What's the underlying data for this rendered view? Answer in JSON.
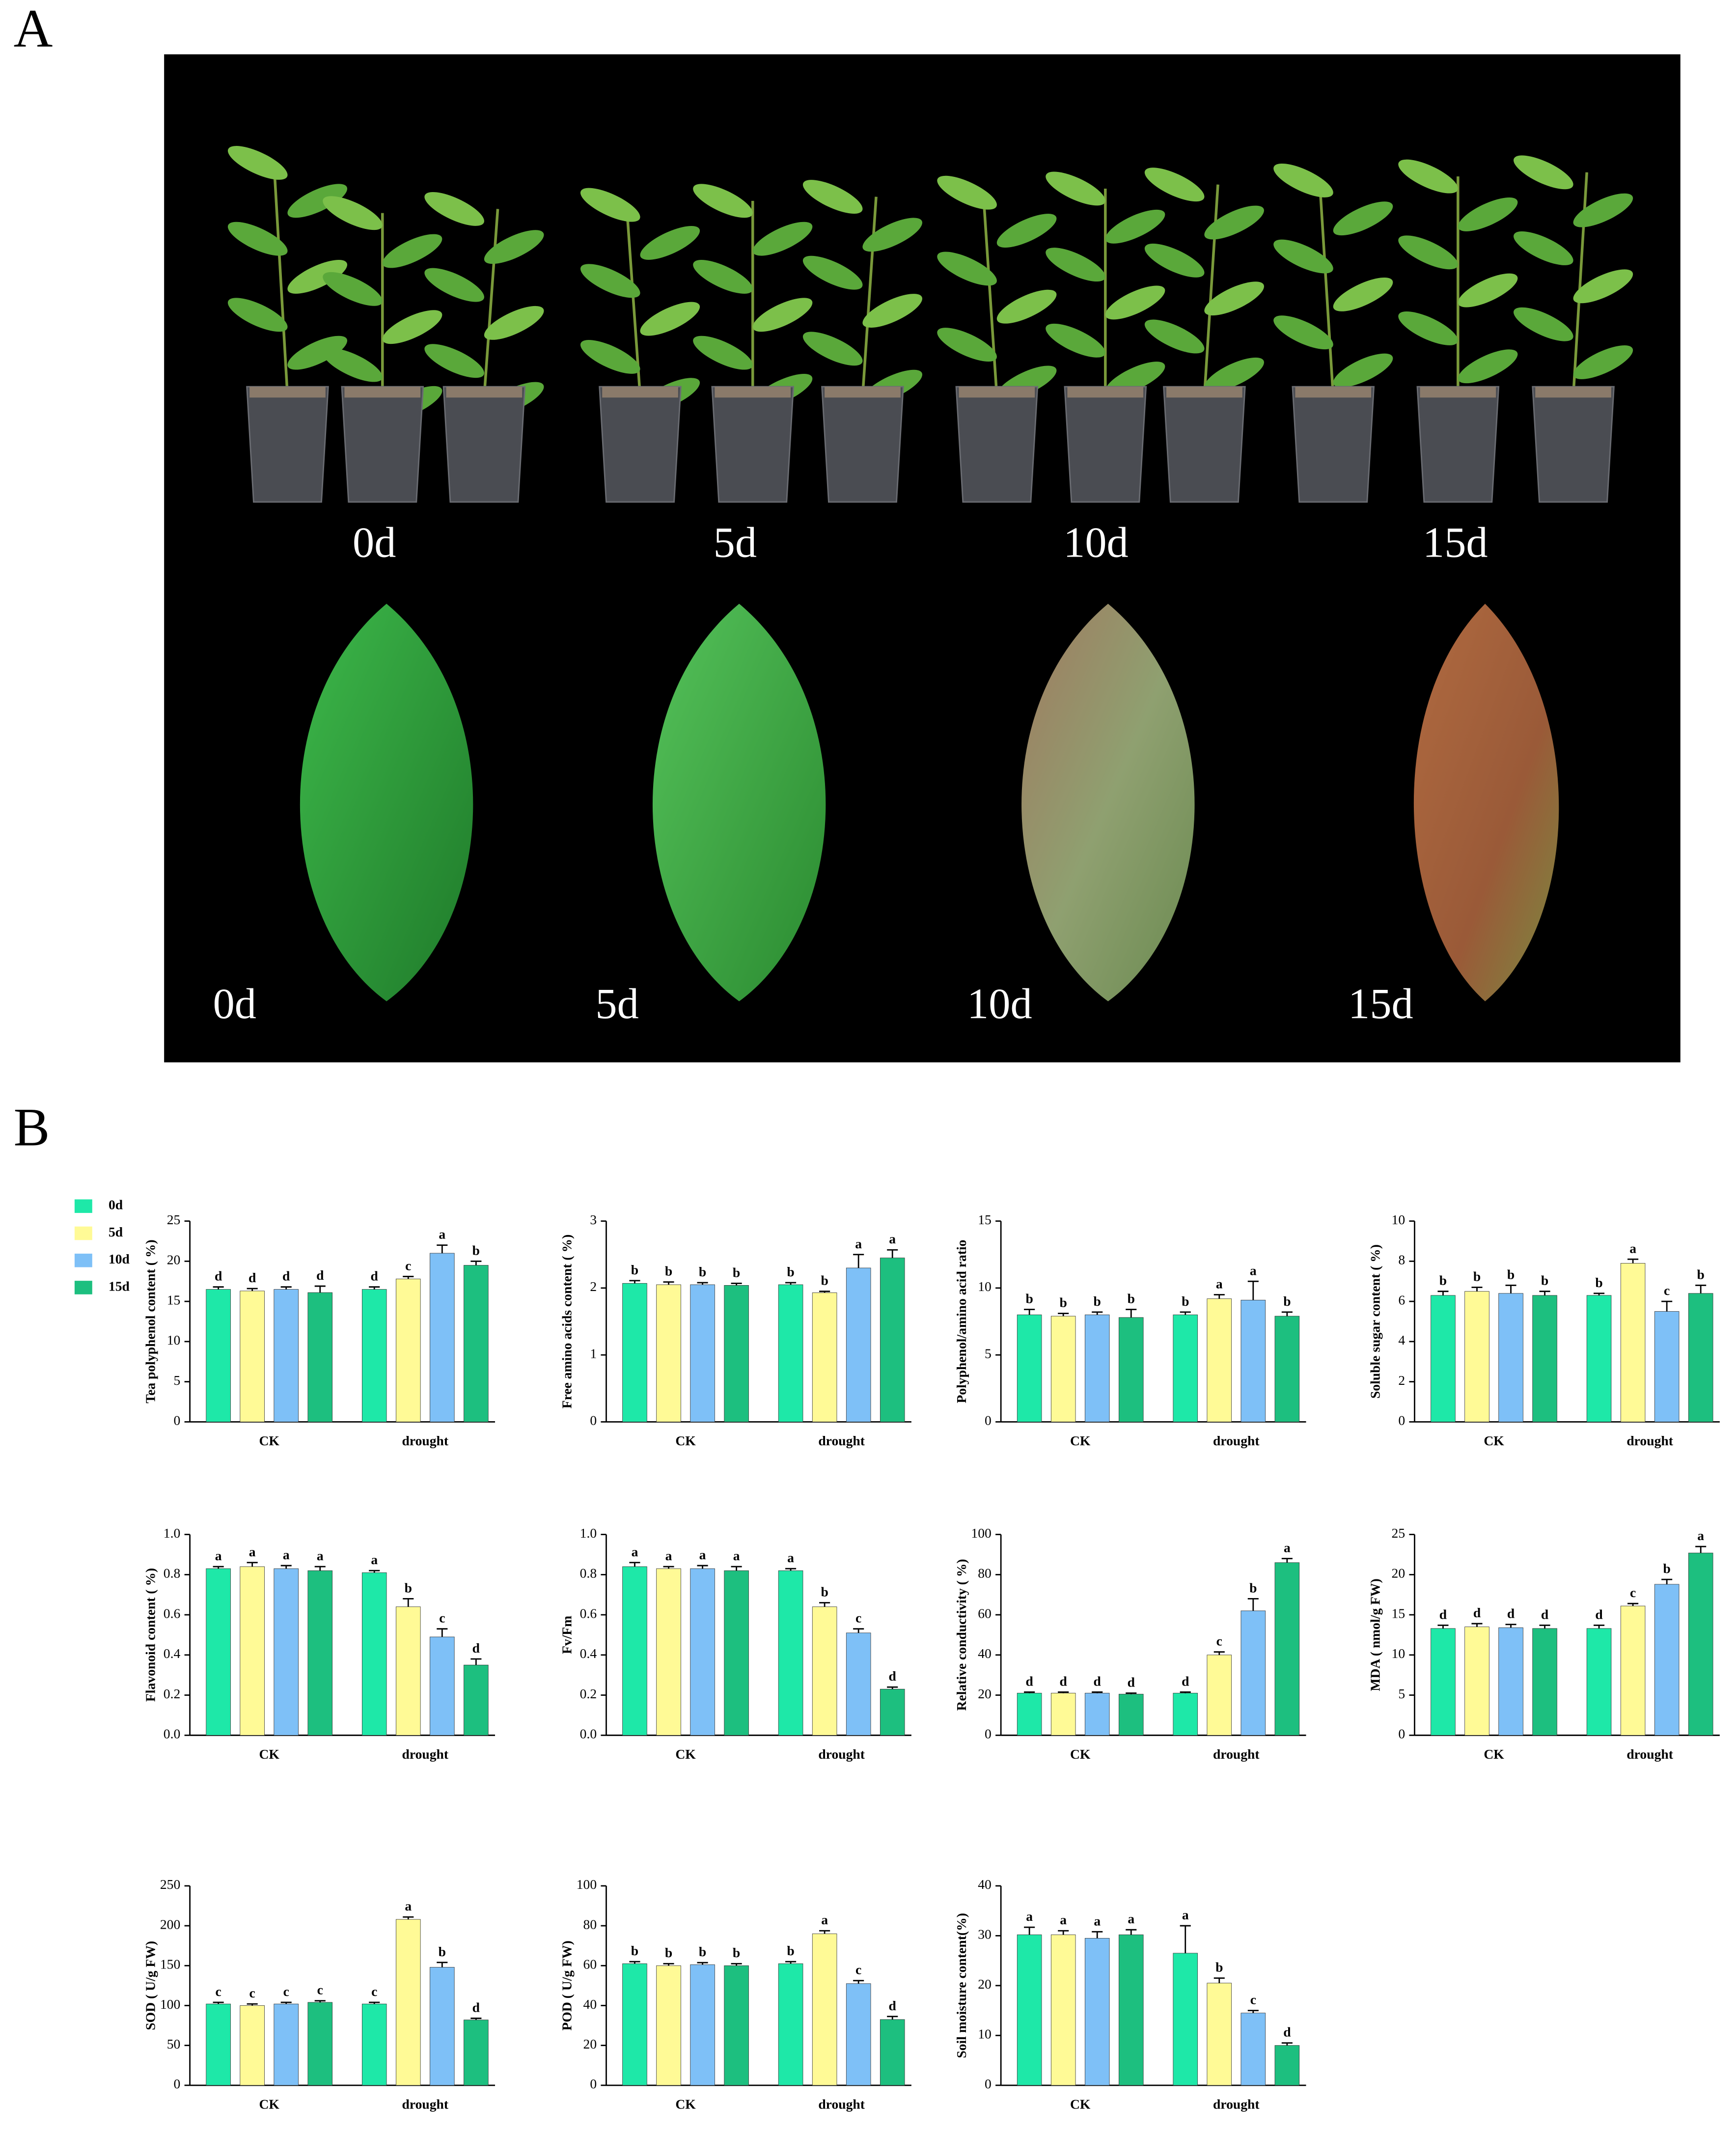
{
  "panel_a": {
    "label": "A",
    "top_labels": [
      "0d",
      "5d",
      "10d",
      "15d"
    ],
    "bottom_labels": [
      "0d",
      "5d",
      "10d",
      "15d"
    ]
  },
  "panel_b": {
    "label": "B"
  },
  "legend": [
    {
      "name": "0d",
      "color": "#1ee8a8"
    },
    {
      "name": "5d",
      "color": "#fffa96"
    },
    {
      "name": "10d",
      "color": "#7ec0f7"
    },
    {
      "name": "15d",
      "color": "#1dbf7f"
    }
  ],
  "chart_data": [
    {
      "type": "bar",
      "y_label": "Tea polyphenol content ( %)",
      "categories": [
        "CK",
        "drought"
      ],
      "ylim": [
        0,
        25
      ],
      "yticks": [
        0,
        5,
        10,
        15,
        20,
        25
      ],
      "series": [
        {
          "values": [
            16.5,
            16.5
          ],
          "errors": [
            0.3,
            0.3
          ],
          "letters": [
            "d",
            "d"
          ]
        },
        {
          "values": [
            16.3,
            17.8
          ],
          "errors": [
            0.3,
            0.3
          ],
          "letters": [
            "d",
            "c"
          ]
        },
        {
          "values": [
            16.5,
            21
          ],
          "errors": [
            0.3,
            1
          ],
          "letters": [
            "d",
            "a"
          ]
        },
        {
          "values": [
            16.1,
            19.5
          ],
          "errors": [
            0.8,
            0.5
          ],
          "letters": [
            "d",
            "b"
          ]
        }
      ]
    },
    {
      "type": "bar",
      "y_label": "Free amino acids content ( %)",
      "categories": [
        "CK",
        "drought"
      ],
      "ylim": [
        0,
        3
      ],
      "yticks": [
        0,
        1,
        2,
        3
      ],
      "series": [
        {
          "values": [
            2.07,
            2.05
          ],
          "errors": [
            0.04,
            0.03
          ],
          "letters": [
            "b",
            "b"
          ]
        },
        {
          "values": [
            2.05,
            1.93
          ],
          "errors": [
            0.04,
            0.02
          ],
          "letters": [
            "b",
            "b"
          ]
        },
        {
          "values": [
            2.05,
            2.3
          ],
          "errors": [
            0.03,
            0.2
          ],
          "letters": [
            "b",
            "a"
          ]
        },
        {
          "values": [
            2.04,
            2.45
          ],
          "errors": [
            0.03,
            0.12
          ],
          "letters": [
            "b",
            "a"
          ]
        }
      ]
    },
    {
      "type": "bar",
      "y_label": "Polyphenol/amino acid ratio",
      "categories": [
        "CK",
        "drought"
      ],
      "ylim": [
        0,
        15
      ],
      "yticks": [
        0,
        5,
        10,
        15
      ],
      "series": [
        {
          "values": [
            8.0,
            8.0
          ],
          "errors": [
            0.4,
            0.2
          ],
          "letters": [
            "b",
            "b"
          ]
        },
        {
          "values": [
            7.9,
            9.2
          ],
          "errors": [
            0.2,
            0.3
          ],
          "letters": [
            "b",
            "a"
          ]
        },
        {
          "values": [
            8.0,
            9.1
          ],
          "errors": [
            0.2,
            1.4
          ],
          "letters": [
            "b",
            "a"
          ]
        },
        {
          "values": [
            7.8,
            7.9
          ],
          "errors": [
            0.6,
            0.3
          ],
          "letters": [
            "b",
            "b"
          ]
        }
      ]
    },
    {
      "type": "bar",
      "y_label": "Soluble sugar content ( %)",
      "categories": [
        "CK",
        "drought"
      ],
      "ylim": [
        0,
        10
      ],
      "yticks": [
        0,
        2,
        4,
        6,
        8,
        10
      ],
      "series": [
        {
          "values": [
            6.3,
            6.3
          ],
          "errors": [
            0.2,
            0.1
          ],
          "letters": [
            "b",
            "b"
          ]
        },
        {
          "values": [
            6.5,
            7.9
          ],
          "errors": [
            0.2,
            0.2
          ],
          "letters": [
            "b",
            "a"
          ]
        },
        {
          "values": [
            6.4,
            5.5
          ],
          "errors": [
            0.4,
            0.5
          ],
          "letters": [
            "b",
            "c"
          ]
        },
        {
          "values": [
            6.3,
            6.4
          ],
          "errors": [
            0.2,
            0.4
          ],
          "letters": [
            "b",
            "b"
          ]
        }
      ]
    },
    {
      "type": "bar",
      "y_label": "Flavonoid content ( %)",
      "categories": [
        "CK",
        "drought"
      ],
      "ylim": [
        0,
        1
      ],
      "yticks": [
        {
          "value": 0,
          "label": "0.0"
        },
        0.2,
        0.4,
        0.6,
        0.8,
        {
          "value": 1,
          "label": "1.0"
        }
      ],
      "series": [
        {
          "values": [
            0.83,
            0.81
          ],
          "errors": [
            0.01,
            0.01
          ],
          "letters": [
            "a",
            "a"
          ]
        },
        {
          "values": [
            0.84,
            0.64
          ],
          "errors": [
            0.02,
            0.04
          ],
          "letters": [
            "a",
            "b"
          ]
        },
        {
          "values": [
            0.83,
            0.49
          ],
          "errors": [
            0.015,
            0.04
          ],
          "letters": [
            "a",
            "c"
          ]
        },
        {
          "values": [
            0.82,
            0.35
          ],
          "errors": [
            0.02,
            0.03
          ],
          "letters": [
            "a",
            "d"
          ]
        }
      ]
    },
    {
      "type": "bar",
      "y_label": "Fv/Fm",
      "categories": [
        "CK",
        "drought"
      ],
      "ylim": [
        0,
        1
      ],
      "yticks": [
        {
          "value": 0,
          "label": "0.0"
        },
        0.2,
        0.4,
        0.6,
        0.8,
        {
          "value": 1,
          "label": "1.0"
        }
      ],
      "series": [
        {
          "values": [
            0.84,
            0.82
          ],
          "errors": [
            0.02,
            0.01
          ],
          "letters": [
            "a",
            "a"
          ]
        },
        {
          "values": [
            0.83,
            0.64
          ],
          "errors": [
            0.01,
            0.02
          ],
          "letters": [
            "a",
            "b"
          ]
        },
        {
          "values": [
            0.83,
            0.51
          ],
          "errors": [
            0.015,
            0.02
          ],
          "letters": [
            "a",
            "c"
          ]
        },
        {
          "values": [
            0.82,
            0.23
          ],
          "errors": [
            0.02,
            0.01
          ],
          "letters": [
            "a",
            "d"
          ]
        }
      ]
    },
    {
      "type": "bar",
      "y_label": "Relative conductivity ( %)",
      "categories": [
        "CK",
        "drought"
      ],
      "ylim": [
        0,
        100
      ],
      "yticks": [
        0,
        20,
        40,
        60,
        80,
        100
      ],
      "series": [
        {
          "values": [
            21,
            21
          ],
          "errors": [
            0.5,
            0.5
          ],
          "letters": [
            "d",
            "d"
          ]
        },
        {
          "values": [
            21,
            40
          ],
          "errors": [
            0.5,
            1.5
          ],
          "letters": [
            "d",
            "c"
          ]
        },
        {
          "values": [
            21,
            62
          ],
          "errors": [
            0.5,
            6
          ],
          "letters": [
            "d",
            "b"
          ]
        },
        {
          "values": [
            20.5,
            86
          ],
          "errors": [
            0.5,
            2
          ],
          "letters": [
            "d",
            "a"
          ]
        }
      ]
    },
    {
      "type": "bar",
      "y_label": "MDA ( nmol/g FW)",
      "categories": [
        "CK",
        "drought"
      ],
      "ylim": [
        0,
        25
      ],
      "yticks": [
        0,
        5,
        10,
        15,
        20,
        25
      ],
      "series": [
        {
          "values": [
            13.3,
            13.3
          ],
          "errors": [
            0.4,
            0.4
          ],
          "letters": [
            "d",
            "d"
          ]
        },
        {
          "values": [
            13.5,
            16.1
          ],
          "errors": [
            0.4,
            0.3
          ],
          "letters": [
            "d",
            "c"
          ]
        },
        {
          "values": [
            13.4,
            18.8
          ],
          "errors": [
            0.4,
            0.6
          ],
          "letters": [
            "d",
            "b"
          ]
        },
        {
          "values": [
            13.3,
            22.7
          ],
          "errors": [
            0.4,
            0.8
          ],
          "letters": [
            "d",
            "a"
          ]
        }
      ]
    },
    {
      "type": "bar",
      "y_label": "SOD ( U/g FW)",
      "categories": [
        "CK",
        "drought"
      ],
      "ylim": [
        0,
        250
      ],
      "yticks": [
        0,
        50,
        100,
        150,
        200,
        250
      ],
      "series": [
        {
          "values": [
            102,
            102
          ],
          "errors": [
            2,
            2
          ],
          "letters": [
            "c",
            "c"
          ]
        },
        {
          "values": [
            100,
            208
          ],
          "errors": [
            2,
            3
          ],
          "letters": [
            "c",
            "a"
          ]
        },
        {
          "values": [
            102,
            148
          ],
          "errors": [
            2,
            6
          ],
          "letters": [
            "c",
            "b"
          ]
        },
        {
          "values": [
            104,
            82
          ],
          "errors": [
            2,
            2
          ],
          "letters": [
            "c",
            "d"
          ]
        }
      ]
    },
    {
      "type": "bar",
      "y_label": "POD ( U/g FW)",
      "categories": [
        "CK",
        "drought"
      ],
      "ylim": [
        0,
        100
      ],
      "yticks": [
        0,
        20,
        40,
        60,
        80,
        100
      ],
      "series": [
        {
          "values": [
            61,
            61
          ],
          "errors": [
            1,
            1
          ],
          "letters": [
            "b",
            "b"
          ]
        },
        {
          "values": [
            60,
            76
          ],
          "errors": [
            1,
            1.5
          ],
          "letters": [
            "b",
            "a"
          ]
        },
        {
          "values": [
            60.5,
            51
          ],
          "errors": [
            1,
            1.5
          ],
          "letters": [
            "b",
            "c"
          ]
        },
        {
          "values": [
            60,
            33
          ],
          "errors": [
            1,
            1.5
          ],
          "letters": [
            "b",
            "d"
          ]
        }
      ]
    },
    {
      "type": "bar",
      "y_label": "Soil moisture content(%)",
      "categories": [
        "CK",
        "drought"
      ],
      "ylim": [
        0,
        40
      ],
      "yticks": [
        0,
        10,
        20,
        30,
        40
      ],
      "series": [
        {
          "values": [
            30.2,
            26.5
          ],
          "errors": [
            1.5,
            5.5
          ],
          "letters": [
            "a",
            "a"
          ]
        },
        {
          "values": [
            30.2,
            20.5
          ],
          "errors": [
            0.8,
            1
          ],
          "letters": [
            "a",
            "b"
          ]
        },
        {
          "values": [
            29.5,
            14.5
          ],
          "errors": [
            1.3,
            0.5
          ],
          "letters": [
            "a",
            "c"
          ]
        },
        {
          "values": [
            30.2,
            8
          ],
          "errors": [
            1,
            0.5
          ],
          "letters": [
            "a",
            "d"
          ]
        }
      ]
    }
  ]
}
